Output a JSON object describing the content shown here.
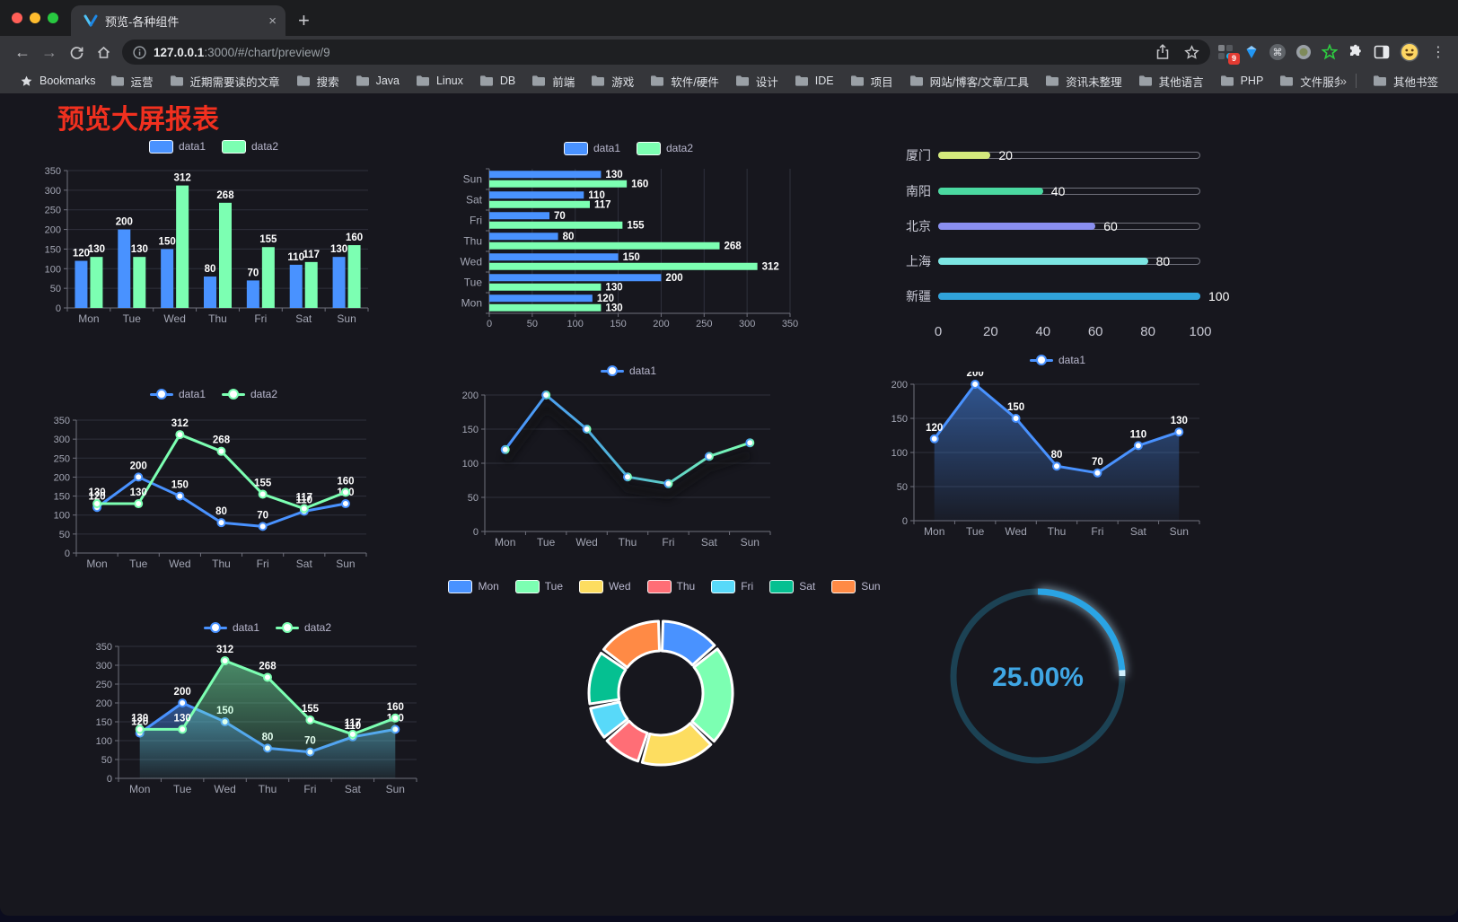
{
  "browser": {
    "tab": {
      "title": "预览-各种组件",
      "close_glyph": "×",
      "new_tab_glyph": "+"
    },
    "url": {
      "host": "127.0.0.1",
      "path": ":3000/#/chart/preview/9"
    },
    "glyphs": {
      "back": "←",
      "forward": "→",
      "menu": "⋮",
      "command": "⌘",
      "overflow": "»"
    },
    "extension_badge": "9",
    "bookmarks": {
      "label": "Bookmarks",
      "folders": [
        "运营",
        "近期需要读的文章",
        "搜索",
        "Java",
        "Linux",
        "DB",
        "前端",
        "游戏",
        "软件/硬件",
        "设计",
        "IDE",
        "项目",
        "网站/博客/文章/工具",
        "资讯未整理",
        "其他语言",
        "PHP",
        "文件服务器"
      ],
      "other": "其他书签"
    }
  },
  "page": {
    "title": "预览大屏报表"
  },
  "theme": {
    "blue": "#4992ff",
    "green": "#7cffb2",
    "yellow": "#fddd60",
    "red": "#ff6e76",
    "lightblue": "#58d9f9",
    "teal": "#05c091",
    "orange": "#ff8a45",
    "axis": "#6f707c",
    "grid": "#2f313c",
    "axis_label": "#a3a6b4",
    "legend_text": "#b9b8ce",
    "value_label": "#ffffff",
    "title_red": "#f1301f"
  },
  "chart_data": [
    {
      "mount": "c1",
      "type": "bar",
      "categories": [
        "Mon",
        "Tue",
        "Wed",
        "Thu",
        "Fri",
        "Sat",
        "Sun"
      ],
      "series": [
        {
          "name": "data1",
          "color": "#4992ff",
          "values": [
            120,
            200,
            150,
            80,
            70,
            110,
            130
          ]
        },
        {
          "name": "data2",
          "color": "#7cffb2",
          "values": [
            130,
            130,
            312,
            268,
            155,
            117,
            160
          ]
        }
      ],
      "ylim": [
        0,
        350
      ],
      "yticks": [
        0,
        50,
        100,
        150,
        200,
        250,
        300,
        350
      ],
      "value_labels": true,
      "legend_position": "top"
    },
    {
      "mount": "c2",
      "type": "bar-horizontal",
      "categories": [
        "Mon",
        "Tue",
        "Wed",
        "Thu",
        "Fri",
        "Sat",
        "Sun"
      ],
      "series": [
        {
          "name": "data1",
          "color": "#4992ff",
          "values": [
            120,
            200,
            150,
            80,
            70,
            110,
            130
          ]
        },
        {
          "name": "data2",
          "color": "#7cffb2",
          "values": [
            130,
            130,
            312,
            268,
            155,
            117,
            160
          ]
        }
      ],
      "xlim": [
        0,
        350
      ],
      "xticks": [
        0,
        50,
        100,
        150,
        200,
        250,
        300,
        350
      ],
      "value_labels": true,
      "legend_position": "top"
    },
    {
      "mount": "c3",
      "type": "progress-bar",
      "categories": [
        "厦门",
        "南阳",
        "北京",
        "上海",
        "新疆"
      ],
      "values": [
        20,
        40,
        60,
        80,
        100
      ],
      "bar_colors": [
        "#d4e97c",
        "#4bd9a1",
        "#8a8ff0",
        "#7ce6e3",
        "#30a3da"
      ],
      "xlim": [
        0,
        100
      ],
      "xticks": [
        0,
        20,
        40,
        60,
        80,
        100
      ]
    },
    {
      "mount": "c4",
      "type": "line",
      "categories": [
        "Mon",
        "Tue",
        "Wed",
        "Thu",
        "Fri",
        "Sat",
        "Sun"
      ],
      "series": [
        {
          "name": "data1",
          "color": "#4992ff",
          "values": [
            120,
            200,
            150,
            80,
            70,
            110,
            130
          ]
        },
        {
          "name": "data2",
          "color": "#7cffb2",
          "values": [
            130,
            130,
            312,
            268,
            155,
            117,
            160
          ]
        }
      ],
      "ylim": [
        0,
        350
      ],
      "yticks": [
        0,
        50,
        100,
        150,
        200,
        250,
        300,
        350
      ],
      "value_labels": true,
      "legend_position": "top"
    },
    {
      "mount": "c5",
      "type": "line",
      "categories": [
        "Mon",
        "Tue",
        "Wed",
        "Thu",
        "Fri",
        "Sat",
        "Sun"
      ],
      "series": [
        {
          "name": "data1",
          "color_gradient": [
            "#4992ff",
            "#51b8d4",
            "#7cffb2"
          ],
          "values": [
            120,
            200,
            150,
            80,
            70,
            110,
            130
          ]
        }
      ],
      "ylim": [
        0,
        200
      ],
      "yticks": [
        0,
        50,
        100,
        150,
        200
      ],
      "value_labels": false,
      "shadow": true,
      "legend_position": "top"
    },
    {
      "mount": "c6",
      "type": "area",
      "categories": [
        "Mon",
        "Tue",
        "Wed",
        "Thu",
        "Fri",
        "Sat",
        "Sun"
      ],
      "series": [
        {
          "name": "data1",
          "color": "#4992ff",
          "values": [
            120,
            200,
            150,
            80,
            70,
            110,
            130
          ]
        }
      ],
      "ylim": [
        0,
        200
      ],
      "yticks": [
        0,
        50,
        100,
        150,
        200
      ],
      "value_labels": true,
      "legend_position": "top"
    },
    {
      "mount": "c7",
      "type": "area",
      "categories": [
        "Mon",
        "Tue",
        "Wed",
        "Thu",
        "Fri",
        "Sat",
        "Sun"
      ],
      "series": [
        {
          "name": "data1",
          "color": "#4992ff",
          "values": [
            120,
            200,
            150,
            80,
            70,
            110,
            130
          ]
        },
        {
          "name": "data2",
          "color": "#7cffb2",
          "values": [
            130,
            130,
            312,
            268,
            155,
            117,
            160
          ]
        }
      ],
      "ylim": [
        0,
        350
      ],
      "yticks": [
        0,
        50,
        100,
        150,
        200,
        250,
        300,
        350
      ],
      "value_labels": true,
      "legend_position": "top"
    },
    {
      "mount": "c8",
      "type": "pie",
      "subtype": "donut",
      "categories": [
        "Mon",
        "Tue",
        "Wed",
        "Thu",
        "Fri",
        "Sat",
        "Sun"
      ],
      "values": [
        120,
        200,
        150,
        80,
        70,
        110,
        130
      ],
      "colors": [
        "#4992ff",
        "#7cffb2",
        "#fddd60",
        "#ff6e76",
        "#58d9f9",
        "#05c091",
        "#ff8a45"
      ],
      "legend_position": "top"
    },
    {
      "mount": "c9",
      "type": "gauge",
      "label": "25.00%",
      "percent": 25,
      "color": "#2aa4e4",
      "track_color": "#1c4254",
      "text_color": "#3fa6e4"
    }
  ]
}
